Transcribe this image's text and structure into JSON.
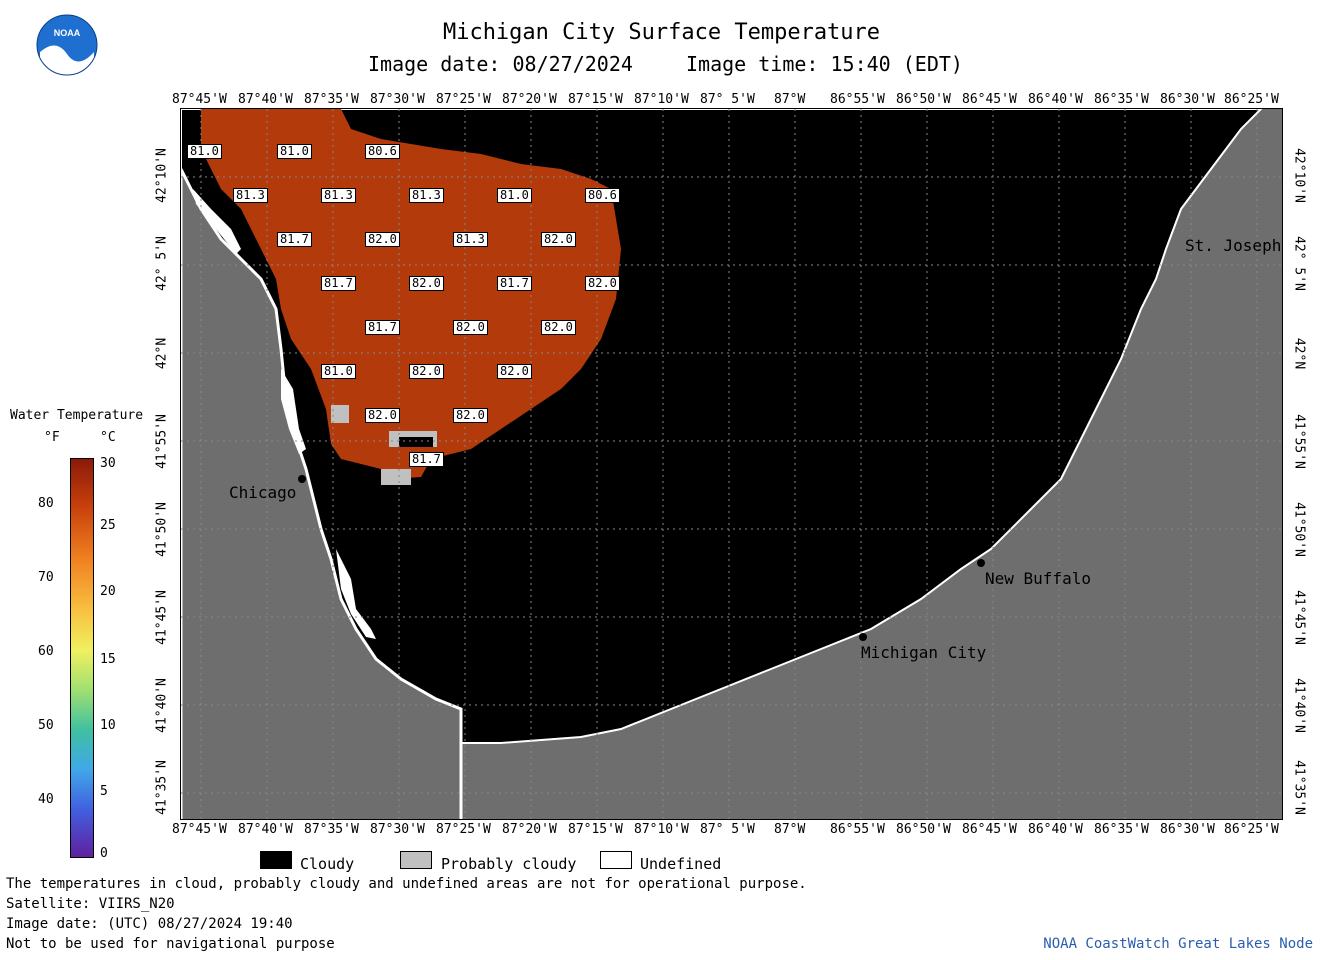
{
  "header": {
    "title": "Michigan City Surface Temperature",
    "image_date": "Image date: 08/27/2024",
    "image_time": "Image time: 15:40 (EDT)"
  },
  "axes": {
    "lon_ticks": [
      "87°45'W",
      "87°40'W",
      "87°35'W",
      "87°30'W",
      "87°25'W",
      "87°20'W",
      "87°15'W",
      "87°10'W",
      "87° 5'W",
      "87°W",
      "86°55'W",
      "86°50'W",
      "86°45'W",
      "86°40'W",
      "86°35'W",
      "86°30'W",
      "86°25'W"
    ],
    "lat_ticks": [
      "42°10'N",
      "42° 5'N",
      "42°N",
      "41°55'N",
      "41°50'N",
      "41°45'N",
      "41°40'N",
      "41°35'N"
    ]
  },
  "cities": [
    {
      "id": "chicago",
      "label": "Chicago"
    },
    {
      "id": "michigan-city",
      "label": "Michigan City"
    },
    {
      "id": "new-buffalo",
      "label": "New Buffalo"
    },
    {
      "id": "st-joseph",
      "label": "St. Joseph"
    }
  ],
  "temperature_labels": [
    "81.0",
    "81.0",
    "80.6",
    "81.3",
    "81.3",
    "81.3",
    "81.0",
    "80.6",
    "81.7",
    "82.0",
    "81.3",
    "82.0",
    "81.7",
    "82.0",
    "81.7",
    "82.0",
    "81.7",
    "82.0",
    "82.0",
    "81.0",
    "82.0",
    "82.0",
    "82.0",
    "82.0",
    "81.7"
  ],
  "color_scale": {
    "title": "Water Temperature",
    "unit_f": "°F",
    "unit_c": "°C",
    "f_ticks": [
      "80",
      "70",
      "60",
      "50",
      "40"
    ],
    "c_ticks": [
      "30",
      "25",
      "20",
      "15",
      "10",
      "5",
      "0"
    ]
  },
  "legend": {
    "cloudy": "Cloudy",
    "probably_cloudy": "Probably cloudy",
    "undefined": "Undefined"
  },
  "colors": {
    "water_warm": "#b33a0a",
    "cloud": "#000000",
    "land": "#6e6e6e",
    "probably_cloudy": "#c0c0c0",
    "undefined": "#ffffff"
  },
  "footer": {
    "line1": "The temperatures in cloud, probably cloudy and undefined areas are not for operational purpose.",
    "line2": "Satellite: VIIRS_N20",
    "line3": "Image date: (UTC) 08/27/2024  19:40",
    "line4": "Not to be used for navigational purpose",
    "credit": "NOAA CoastWatch Great Lakes Node"
  },
  "logo": {
    "text": "NOAA"
  }
}
